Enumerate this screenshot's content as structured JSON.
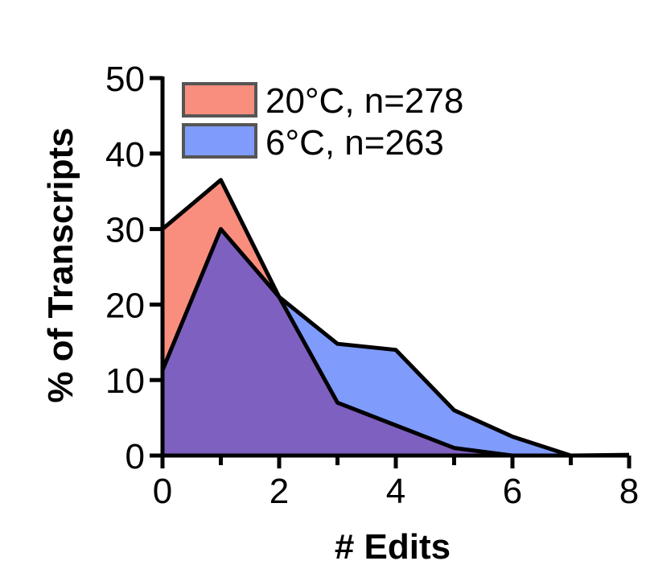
{
  "chart_data": {
    "type": "area",
    "title": "",
    "xlabel": "# Edits",
    "ylabel": "% of Transcripts",
    "xlim": [
      0,
      8
    ],
    "ylim": [
      0,
      50
    ],
    "xticks": [
      0,
      2,
      4,
      6,
      8
    ],
    "yticks": [
      0,
      10,
      20,
      30,
      40,
      50
    ],
    "grid": false,
    "legend_position": "top-left",
    "x": [
      0,
      1,
      2,
      3,
      4,
      5,
      6,
      7,
      8
    ],
    "series": [
      {
        "name": "20°C, n=278",
        "color": "#f98e7e",
        "values": [
          30,
          36.5,
          21,
          7,
          4,
          1,
          0,
          0,
          0
        ]
      },
      {
        "name": "6°C, n=263",
        "color": "#7f9bfb",
        "values": [
          11.3,
          30,
          21,
          14.8,
          14,
          6,
          2.5,
          0,
          0.1
        ]
      }
    ],
    "overlap_color": "#7e60c0"
  }
}
